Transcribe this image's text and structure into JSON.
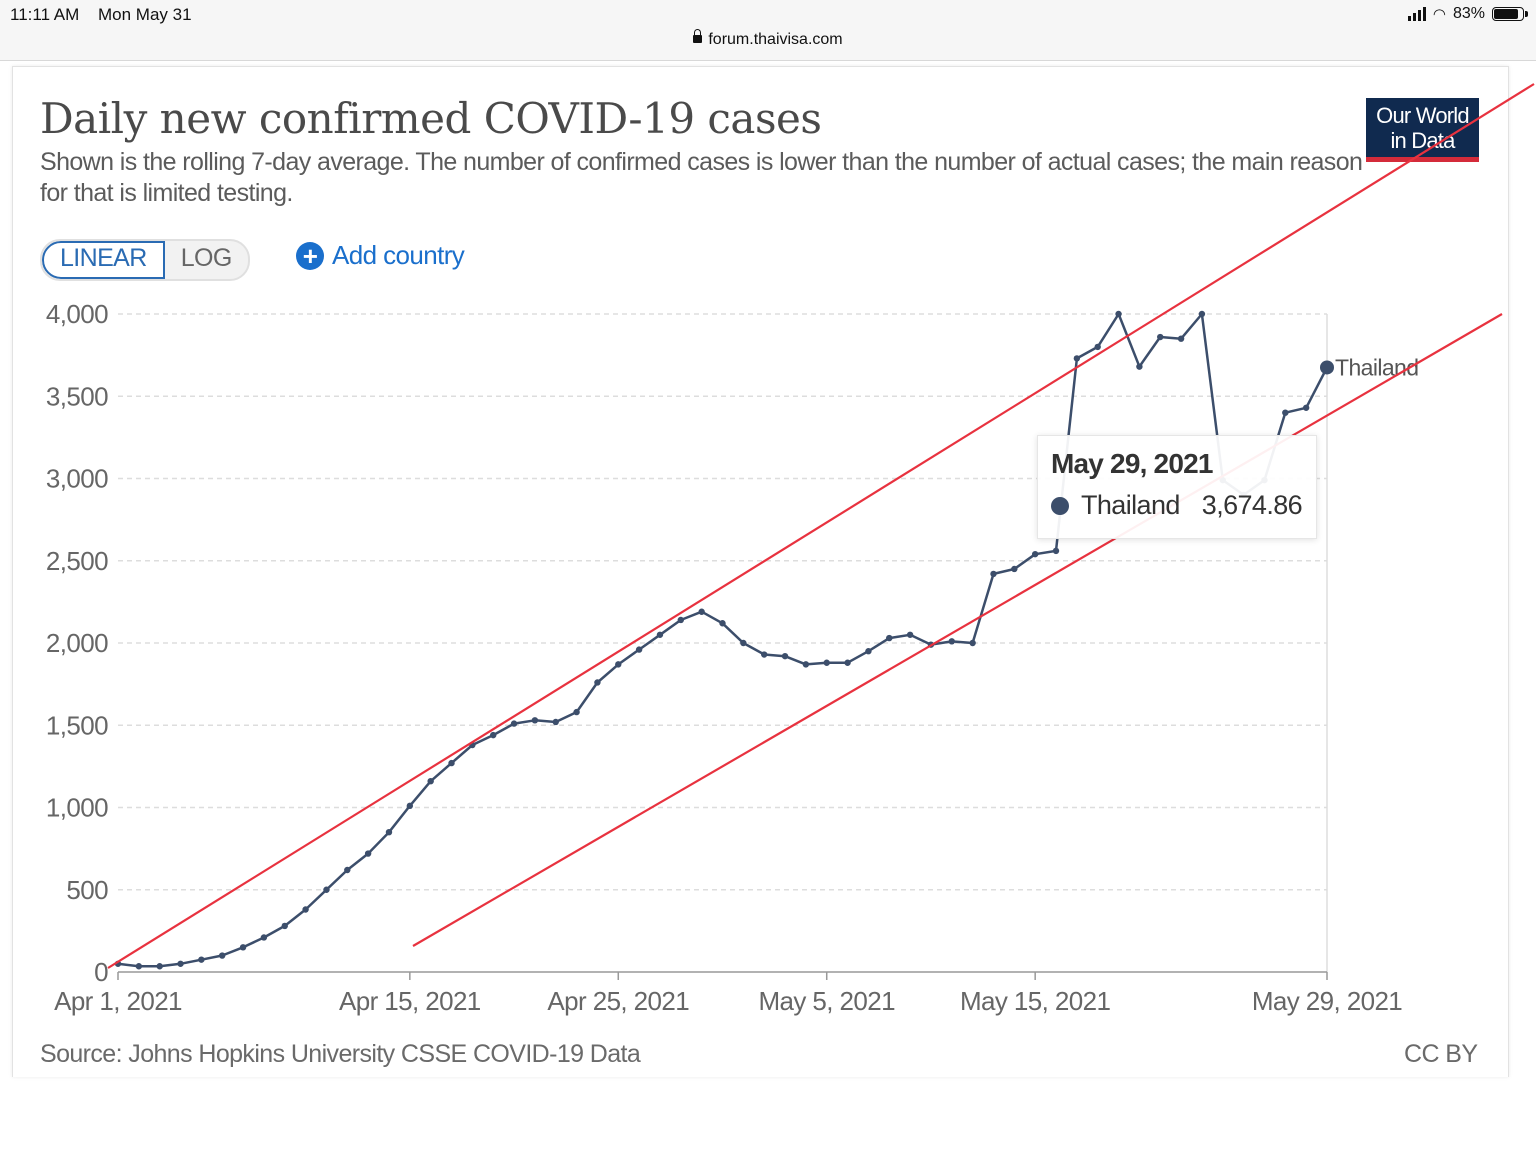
{
  "status_bar": {
    "time": "11:11 AM",
    "date": "Mon May 31",
    "url": "forum.thaivisa.com",
    "battery": "83%"
  },
  "header": {
    "title": "Daily new confirmed COVID-19 cases",
    "subtitle": "Shown is the rolling 7-day average. The number of confirmed cases is lower than the number of actual cases; the main reason for that is limited testing.",
    "logo_line1": "Our World",
    "logo_line2": "in Data"
  },
  "controls": {
    "linear_label": "LINEAR",
    "log_label": "LOG",
    "add_country_label": "Add country"
  },
  "tooltip": {
    "date": "May 29, 2021",
    "series": "Thailand",
    "value": "3,674.86"
  },
  "footer": {
    "source": "Source: Johns Hopkins University CSSE COVID-19 Data",
    "license": "CC BY"
  },
  "colors": {
    "series": "#3c4e6b",
    "annotation_lines": "#e8323f",
    "grid": "#dddddd",
    "brand_navy": "#102a4f",
    "brand_red": "#d42b3a",
    "link_blue": "#1a6fcc"
  },
  "chart_data": {
    "type": "line",
    "x_tick_labels": [
      "Apr 1, 2021",
      "Apr 15, 2021",
      "Apr 25, 2021",
      "May 5, 2021",
      "May 15, 2021",
      "May 29, 2021"
    ],
    "y_tick_labels": [
      "0",
      "500",
      "1,000",
      "1,500",
      "2,000",
      "2,500",
      "3,000",
      "3,500",
      "4,000"
    ],
    "ylim": [
      0,
      4000
    ],
    "grid": "horizontal dashed",
    "series": [
      {
        "name": "Thailand",
        "x": [
          "2021-04-01",
          "2021-04-02",
          "2021-04-03",
          "2021-04-04",
          "2021-04-05",
          "2021-04-06",
          "2021-04-07",
          "2021-04-08",
          "2021-04-09",
          "2021-04-10",
          "2021-04-11",
          "2021-04-12",
          "2021-04-13",
          "2021-04-14",
          "2021-04-15",
          "2021-04-16",
          "2021-04-17",
          "2021-04-18",
          "2021-04-19",
          "2021-04-20",
          "2021-04-21",
          "2021-04-22",
          "2021-04-23",
          "2021-04-24",
          "2021-04-25",
          "2021-04-26",
          "2021-04-27",
          "2021-04-28",
          "2021-04-29",
          "2021-04-30",
          "2021-05-01",
          "2021-05-02",
          "2021-05-03",
          "2021-05-04",
          "2021-05-05",
          "2021-05-06",
          "2021-05-07",
          "2021-05-08",
          "2021-05-09",
          "2021-05-10",
          "2021-05-11",
          "2021-05-12",
          "2021-05-13",
          "2021-05-14",
          "2021-05-15",
          "2021-05-16",
          "2021-05-17",
          "2021-05-18",
          "2021-05-19",
          "2021-05-20",
          "2021-05-21",
          "2021-05-22",
          "2021-05-23",
          "2021-05-24",
          "2021-05-25",
          "2021-05-26",
          "2021-05-27",
          "2021-05-28",
          "2021-05-29"
        ],
        "y": [
          50,
          35,
          35,
          50,
          75,
          100,
          150,
          210,
          280,
          380,
          500,
          620,
          720,
          850,
          1010,
          1160,
          1270,
          1380,
          1440,
          1510,
          1530,
          1520,
          1580,
          1760,
          1870,
          1960,
          2050,
          2140,
          2190,
          2120,
          2000,
          1930,
          1920,
          1870,
          1880,
          1880,
          1950,
          2030,
          2050,
          1990,
          2010,
          2000,
          2420,
          2450,
          2540,
          2560,
          3730,
          3800,
          4000,
          3680,
          3860,
          3850,
          4000,
          2990,
          2900,
          2990,
          3400,
          3430,
          3674.86
        ]
      }
    ],
    "annotations": "two hand-drawn red straight lines forming an upward channel"
  }
}
